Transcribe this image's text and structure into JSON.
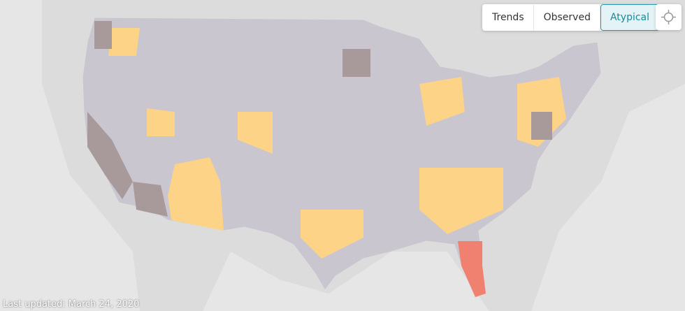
{
  "controls": {
    "tabs": [
      "Trends",
      "Observed",
      "Atypical"
    ],
    "active": 2
  },
  "footer": {
    "updated": "Last updated: March 24, 2020"
  }
}
